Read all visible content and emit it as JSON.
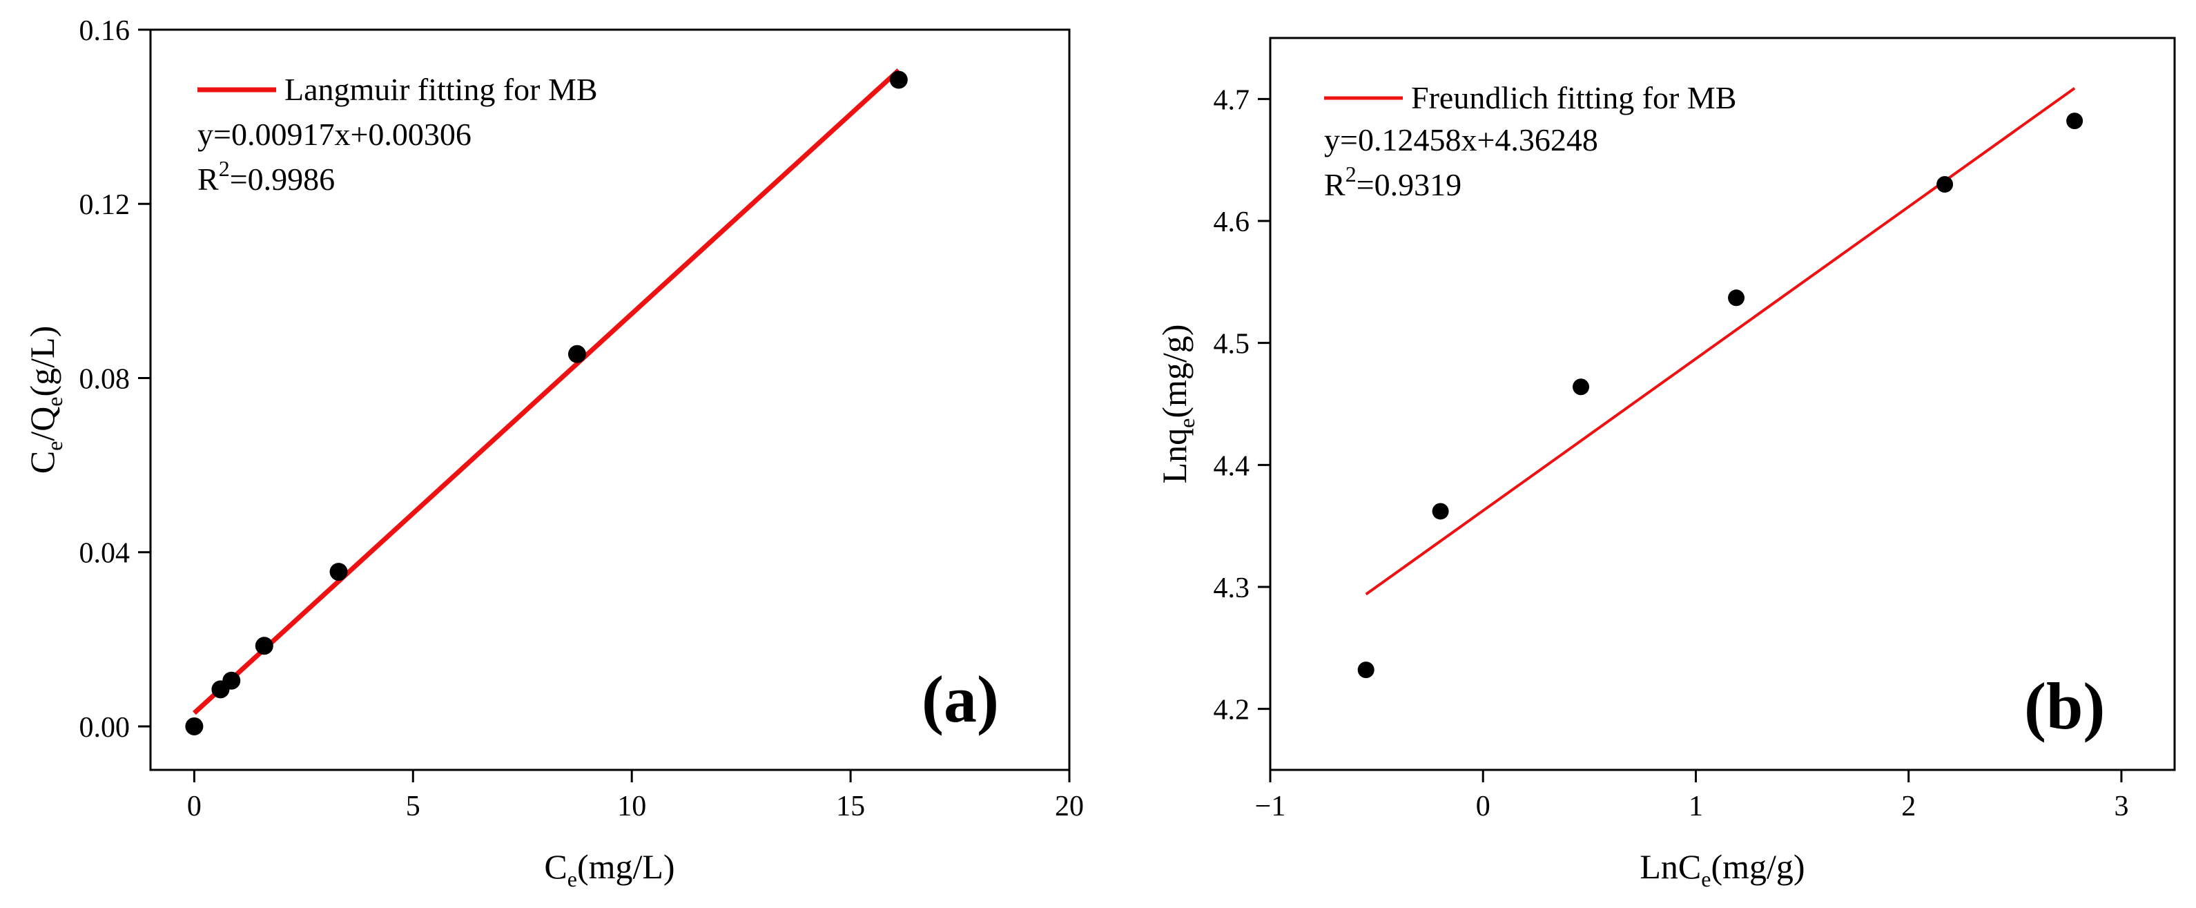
{
  "chart_data": [
    {
      "type": "scatter",
      "panel": "(a)",
      "xlabel": "C_e(mg/L)",
      "xlabel_parts": [
        "C",
        "e",
        "(mg/L)"
      ],
      "ylabel": "C_e/Q_e(g/L)",
      "ylabel_parts": [
        "C",
        "e",
        "/Q",
        "e",
        "(g/L)"
      ],
      "xlim": [
        -1,
        20
      ],
      "ylim": [
        -0.01,
        0.16
      ],
      "xticks": [
        0,
        5,
        10,
        15,
        20
      ],
      "yticks": [
        0.0,
        0.04,
        0.08,
        0.12,
        0.16
      ],
      "xtick_labels": [
        "0",
        "5",
        "10",
        "15",
        "20"
      ],
      "ytick_labels": [
        "0.00",
        "0.04",
        "0.08",
        "0.12",
        "0.16"
      ],
      "points": {
        "x": [
          0.0,
          0.6,
          0.85,
          1.6,
          3.3,
          8.75,
          16.1
        ],
        "y": [
          0.0,
          0.0085,
          0.0105,
          0.0185,
          0.0355,
          0.0855,
          0.1485
        ]
      },
      "fit": {
        "name": "Langmuir fitting for MB",
        "slope": 0.00917,
        "intercept": 0.00306,
        "x_range": [
          0,
          16.1
        ],
        "color": "#ee1111"
      },
      "equation": "y=0.00917x+0.00306",
      "r2_prefix": "R",
      "r2_sup": "2",
      "r2_value": "=0.9986",
      "legend_position": "top-left",
      "point_color": "#000000"
    },
    {
      "type": "scatter",
      "panel": "(b)",
      "xlabel": "LnC_e(mg/g)",
      "xlabel_parts": [
        "LnC",
        "e",
        "(mg/g)"
      ],
      "ylabel": "Lnq_e(mg/g)",
      "ylabel_parts": [
        "Lnq",
        "e",
        "(mg/g)"
      ],
      "xlim": [
        -1,
        3.25
      ],
      "ylim": [
        4.15,
        4.75
      ],
      "xticks": [
        -1,
        0,
        1,
        2,
        3
      ],
      "yticks": [
        4.2,
        4.3,
        4.4,
        4.5,
        4.6,
        4.7
      ],
      "xtick_labels": [
        "−1",
        "0",
        "1",
        "2",
        "3"
      ],
      "ytick_labels": [
        "4.2",
        "4.3",
        "4.4",
        "4.5",
        "4.6",
        "4.7"
      ],
      "points": {
        "x": [
          -0.55,
          -0.2,
          0.46,
          1.19,
          2.17,
          2.78
        ],
        "y": [
          4.232,
          4.362,
          4.464,
          4.537,
          4.63,
          4.682
        ]
      },
      "fit": {
        "name": "Freundlich fitting for MB",
        "slope": 0.12458,
        "intercept": 4.36248,
        "x_range": [
          -0.55,
          2.78
        ],
        "color": "#ee1111"
      },
      "equation": "y=0.12458x+4.36248",
      "r2_prefix": "R",
      "r2_sup": "2",
      "r2_value": "=0.9319",
      "legend_position": "top-left",
      "point_color": "#000000"
    }
  ]
}
